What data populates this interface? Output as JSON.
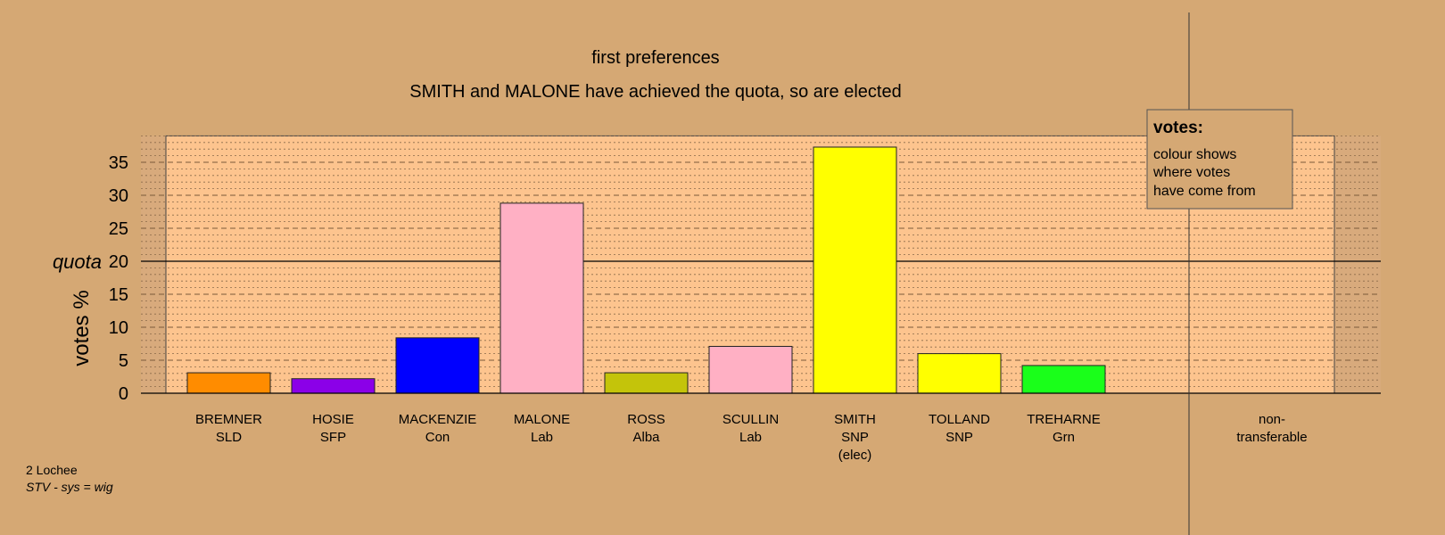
{
  "chart_data": {
    "type": "bar",
    "title": "first preferences",
    "subtitle": "SMITH and MALONE have achieved the quota, so are elected",
    "ylabel": "votes %",
    "ylim": [
      0,
      39
    ],
    "yticks": [
      0,
      5,
      10,
      15,
      20,
      25,
      30,
      35
    ],
    "quota": {
      "value": 20,
      "label": "quota"
    },
    "grid": "dashed major, dotted minor",
    "categories": [
      {
        "name": "BREMNER",
        "party": "SLD",
        "note": "",
        "value": 3.1,
        "color": "#ff8c00"
      },
      {
        "name": "HOSIE",
        "party": "SFP",
        "note": "",
        "value": 2.2,
        "color": "#8b00e8"
      },
      {
        "name": "MACKENZIE",
        "party": "Con",
        "note": "",
        "value": 8.4,
        "color": "#0000ff"
      },
      {
        "name": "MALONE",
        "party": "Lab",
        "note": "",
        "value": 28.8,
        "color": "#ffb0c4"
      },
      {
        "name": "ROSS",
        "party": "Alba",
        "note": "",
        "value": 3.1,
        "color": "#c4c40a"
      },
      {
        "name": "SCULLIN",
        "party": "Lab",
        "note": "",
        "value": 7.1,
        "color": "#ffb0c4"
      },
      {
        "name": "SMITH",
        "party": "SNP",
        "note": "(elec)",
        "value": 37.3,
        "color": "#ffff00"
      },
      {
        "name": "TOLLAND",
        "party": "SNP",
        "note": "",
        "value": 6.0,
        "color": "#ffff00"
      },
      {
        "name": "TREHARNE",
        "party": "Grn",
        "note": "",
        "value": 4.2,
        "color": "#1aff1a"
      }
    ],
    "nontransferable": {
      "line1": "non-",
      "line2": "transferable",
      "value": 0
    },
    "legend": {
      "title": "votes:",
      "lines": [
        "colour shows",
        "where votes",
        "have come from"
      ],
      "position": "top-right"
    },
    "footer": {
      "ward": "2 Lochee",
      "system": "STV - sys = wig"
    }
  }
}
